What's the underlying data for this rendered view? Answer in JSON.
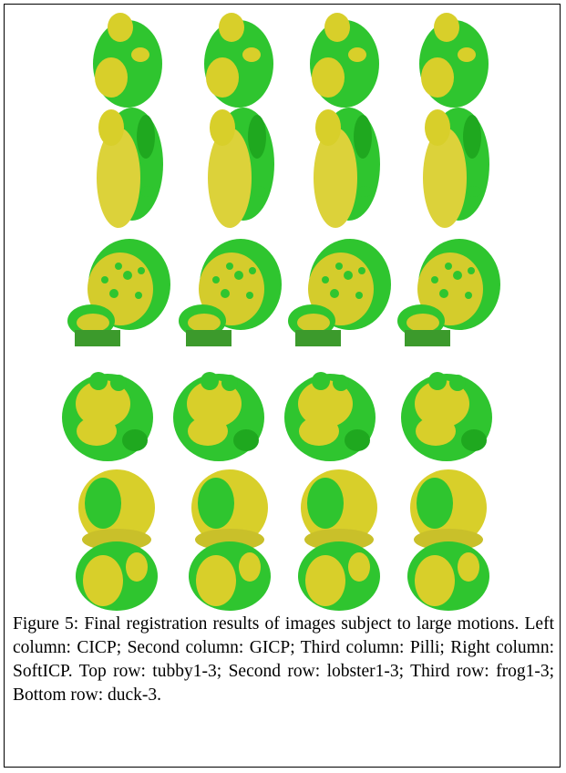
{
  "figure": {
    "caption": "Figure 5: Final registration results of images subject to large motions. Left column: CICP; Second column: GICP; Third column: Pilli; Right column: SoftICP. Top row: tubby1-3; Second row: lobster1-3; Third row: frog1-3; Bottom row: duck-3."
  }
}
